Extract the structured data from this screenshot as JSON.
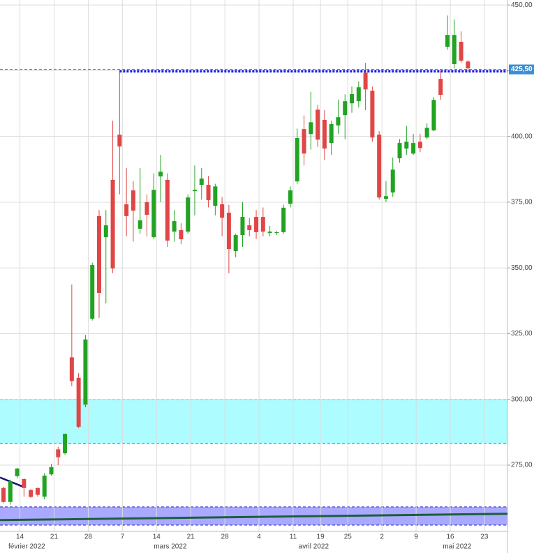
{
  "chart_data": {
    "type": "candlestick",
    "categories": [
      null,
      null,
      "14",
      null,
      null,
      null,
      null,
      "21",
      null,
      null,
      null,
      null,
      "28",
      null,
      null,
      null,
      null,
      "7",
      null,
      null,
      null,
      null,
      "14",
      null,
      null,
      null,
      null,
      "21",
      null,
      null,
      null,
      null,
      "28",
      null,
      null,
      null,
      null,
      "4",
      null,
      null,
      null,
      null,
      "11",
      null,
      null,
      null,
      "19",
      null,
      null,
      null,
      "25",
      null,
      null,
      null,
      null,
      "2",
      null,
      null,
      null,
      null,
      "9",
      null,
      null,
      null,
      null,
      "16",
      null,
      null,
      null,
      null,
      "23",
      null,
      null,
      null
    ],
    "month_labels": [
      null,
      null,
      null,
      "février 2022",
      null,
      null,
      null,
      null,
      null,
      null,
      null,
      null,
      null,
      null,
      null,
      null,
      null,
      null,
      null,
      null,
      null,
      null,
      null,
      null,
      "mars 2022",
      null,
      null,
      null,
      null,
      null,
      null,
      null,
      null,
      null,
      null,
      null,
      null,
      null,
      null,
      null,
      null,
      null,
      null,
      null,
      null,
      "avril 2022",
      null,
      null,
      null,
      null,
      null,
      null,
      null,
      null,
      null,
      null,
      null,
      null,
      null,
      null,
      null,
      null,
      null,
      null,
      null,
      null,
      "mai 2022",
      null,
      null,
      null,
      null,
      null,
      null,
      null
    ],
    "open": [
      266.3,
      261.0,
      270.8,
      269.7,
      265.5,
      266.3,
      263.0,
      271.5,
      281.0,
      279.5,
      316.0,
      308.2,
      298.0,
      330.7,
      369.7,
      361.7,
      383.5,
      400.7,
      374.2,
      379.5,
      364.9,
      375.0,
      361.7,
      384.8,
      383.5,
      363.8,
      364.4,
      363.8,
      379.2,
      381.6,
      381.6,
      373.6,
      374.2,
      371.0,
      356.4,
      362.5,
      366.2,
      369.4,
      369.4,
      363.3,
      363.3,
      363.6,
      374.4,
      382.9,
      402.8,
      400.9,
      410.2,
      406.3,
      397.5,
      404.2,
      408.1,
      412.6,
      413.4,
      424.3,
      417.4,
      400.7,
      376.3,
      378.7,
      391.7,
      395.4,
      393.5,
      398.0,
      399.6,
      402.3,
      421.9,
      434.1,
      427.5,
      436.0,
      428.5,
      null,
      null,
      null,
      null,
      null
    ],
    "high": [
      266.8,
      269.5,
      274.0,
      270.0,
      266.0,
      266.5,
      272.0,
      275.5,
      282.0,
      287.0,
      343.7,
      310.0,
      324.5,
      352.0,
      372.0,
      372.0,
      406.0,
      425.0,
      388.0,
      383.0,
      388.0,
      378.0,
      386.0,
      393.0,
      386.0,
      372.0,
      367.0,
      378.0,
      389.0,
      388.0,
      385.0,
      382.0,
      377.0,
      374.0,
      363.0,
      375.0,
      369.0,
      372.0,
      373.0,
      366.0,
      364.0,
      374.0,
      381.0,
      403.0,
      408.0,
      417.0,
      412.0,
      410.0,
      406.0,
      414.0,
      416.0,
      419.0,
      421.0,
      428.0,
      419.0,
      402.0,
      383.0,
      392.0,
      399.0,
      404.0,
      401.0,
      401.0,
      405.0,
      415.0,
      425.0,
      446.0,
      444.5,
      440.0,
      429.0,
      null,
      null,
      null,
      null,
      null
    ],
    "low": [
      260.5,
      260.0,
      270.0,
      263.0,
      262.5,
      263.0,
      262.0,
      271.0,
      275.0,
      279.0,
      305.0,
      289.0,
      297.0,
      330.0,
      331.0,
      336.5,
      348.0,
      378.0,
      362.0,
      360.0,
      363.0,
      362.0,
      361.0,
      375.0,
      358.0,
      360.0,
      359.0,
      363.0,
      370.0,
      376.0,
      373.0,
      370.0,
      362.0,
      348.0,
      354.0,
      358.0,
      362.0,
      361.0,
      362.0,
      362.0,
      362.6,
      363.0,
      373.0,
      382.0,
      389.0,
      395.0,
      396.0,
      391.0,
      393.0,
      401.0,
      399.0,
      409.0,
      411.0,
      410.0,
      398.0,
      376.0,
      375.0,
      377.0,
      390.0,
      393.0,
      393.0,
      394.0,
      399.0,
      402.0,
      414.0,
      433.0,
      426.0,
      428.0,
      425.0,
      null,
      null,
      null,
      null,
      null
    ],
    "close": [
      261.0,
      268.9,
      273.7,
      266.3,
      262.9,
      263.7,
      271.0,
      274.2,
      278.0,
      286.9,
      307.0,
      289.6,
      322.8,
      351.1,
      340.5,
      366.2,
      349.8,
      396.2,
      369.7,
      371.8,
      368.1,
      370.2,
      379.7,
      386.6,
      360.4,
      367.8,
      360.9,
      376.8,
      379.7,
      384.0,
      375.8,
      381.0,
      369.1,
      357.2,
      362.5,
      369.4,
      364.4,
      363.6,
      363.8,
      363.8,
      363.6,
      372.9,
      379.5,
      399.4,
      393.5,
      405.4,
      398.8,
      395.4,
      404.7,
      407.3,
      413.4,
      416.1,
      418.7,
      417.9,
      399.6,
      376.8,
      377.3,
      387.4,
      397.5,
      398.0,
      397.5,
      395.6,
      403.3,
      413.9,
      415.8,
      438.6,
      438.6,
      428.8,
      425.9,
      null,
      null,
      null,
      null,
      null
    ],
    "up_color": "#22a322",
    "down_color": "#e04646",
    "ylim": [
      249.8,
      451.9
    ],
    "yticks": [
      {
        "value": 275,
        "label": "275,00"
      },
      {
        "value": 300,
        "label": "300,00"
      },
      {
        "value": 325,
        "label": "325,00"
      },
      {
        "value": 350,
        "label": "350,00"
      },
      {
        "value": 375,
        "label": "375,00"
      },
      {
        "value": 400,
        "label": "400,00"
      },
      {
        "value": 425,
        "label": "425,00"
      },
      {
        "value": 450,
        "label": "450,00"
      }
    ],
    "grid": true,
    "annotations": {
      "levels": [
        {
          "value": 425.5,
          "label": "425,50",
          "color": "#e05555",
          "tag_color": "#3a8fd6"
        }
      ],
      "support": {
        "value": 424.8,
        "color": "#1a1ae0"
      },
      "zones": [
        {
          "from": 283.2,
          "to": 300,
          "color": "#adfcff",
          "edge": "#33aaee"
        },
        {
          "from": 252.2,
          "to": 259.1,
          "color": "#a9a9ff",
          "edge": "#5050d8"
        }
      ],
      "trend": {
        "from": 254.1,
        "to": 256.5,
        "color": "#1d5e3a"
      },
      "short_trend": {
        "from": 270.3,
        "to": 266.8,
        "color": "#14146e"
      }
    }
  }
}
